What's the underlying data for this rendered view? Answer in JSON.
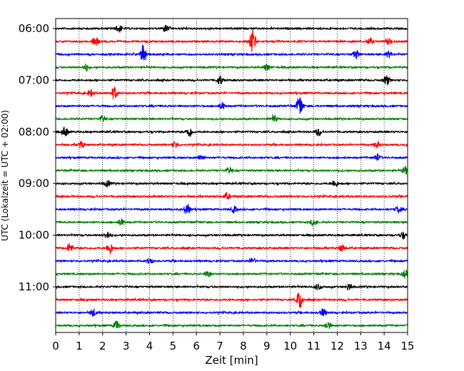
{
  "chart_data": {
    "type": "line",
    "title": "",
    "xlabel": "Zeit  [min]",
    "ylabel": "UTC (Lokalzeit = UTC + 02:00)",
    "xlim": [
      0,
      15
    ],
    "x_ticks": [
      "0",
      "1",
      "2",
      "3",
      "4",
      "5",
      "6",
      "7",
      "8",
      "9",
      "10",
      "11",
      "12",
      "13",
      "14",
      "15"
    ],
    "y_ticks": [
      "06:00",
      "07:00",
      "08:00",
      "09:00",
      "10:00",
      "11:00"
    ],
    "grid": "vertical dotted",
    "trace_interval_minutes": 15,
    "start_time": "06:00",
    "trace_colors": [
      "#000000",
      "#ff0000",
      "#0000ff",
      "#008000"
    ],
    "series": [
      {
        "time": "06:00",
        "events": [
          [
            2.7,
            0.35
          ],
          [
            4.7,
            0.3
          ]
        ]
      },
      {
        "time": "06:15",
        "events": [
          [
            1.7,
            0.5
          ],
          [
            8.4,
            1.2
          ],
          [
            13.4,
            0.3
          ],
          [
            14.2,
            0.3
          ]
        ]
      },
      {
        "time": "06:30",
        "events": [
          [
            3.75,
            1.0
          ],
          [
            12.8,
            0.4
          ],
          [
            14.2,
            0.3
          ]
        ]
      },
      {
        "time": "06:45",
        "events": [
          [
            1.3,
            0.3
          ],
          [
            9.0,
            0.3
          ]
        ]
      },
      {
        "time": "07:00",
        "events": [
          [
            7.0,
            0.4
          ],
          [
            14.1,
            0.45
          ]
        ]
      },
      {
        "time": "07:15",
        "events": [
          [
            2.5,
            0.6
          ],
          [
            1.5,
            0.3
          ]
        ]
      },
      {
        "time": "07:30",
        "events": [
          [
            10.4,
            1.0
          ],
          [
            7.1,
            0.3
          ]
        ]
      },
      {
        "time": "07:45",
        "events": [
          [
            2.0,
            0.3
          ],
          [
            9.3,
            0.35
          ]
        ]
      },
      {
        "time": "08:00",
        "events": [
          [
            0.4,
            0.45
          ],
          [
            5.7,
            0.5
          ],
          [
            11.2,
            0.35
          ]
        ]
      },
      {
        "time": "08:15",
        "events": [
          [
            1.1,
            0.3
          ],
          [
            5.1,
            0.3
          ],
          [
            13.7,
            0.3
          ]
        ]
      },
      {
        "time": "08:30",
        "events": [
          [
            6.2,
            0.3
          ],
          [
            13.7,
            0.35
          ]
        ]
      },
      {
        "time": "08:45",
        "events": [
          [
            7.4,
            0.3
          ],
          [
            14.9,
            0.35
          ]
        ]
      },
      {
        "time": "09:00",
        "events": [
          [
            2.2,
            0.3
          ],
          [
            11.9,
            0.35
          ]
        ]
      },
      {
        "time": "09:15",
        "events": [
          [
            7.3,
            0.3
          ]
        ]
      },
      {
        "time": "09:30",
        "events": [
          [
            5.6,
            0.55
          ],
          [
            7.6,
            0.3
          ],
          [
            14.6,
            0.3
          ]
        ]
      },
      {
        "time": "09:45",
        "events": [
          [
            2.8,
            0.3
          ],
          [
            11.0,
            0.35
          ]
        ]
      },
      {
        "time": "10:00",
        "events": [
          [
            2.2,
            0.35
          ],
          [
            14.8,
            0.3
          ]
        ]
      },
      {
        "time": "10:15",
        "events": [
          [
            0.6,
            0.45
          ],
          [
            2.3,
            0.55
          ],
          [
            12.2,
            0.3
          ]
        ]
      },
      {
        "time": "10:30",
        "events": [
          [
            4.0,
            0.3
          ],
          [
            8.4,
            0.3
          ]
        ]
      },
      {
        "time": "10:45",
        "events": [
          [
            6.5,
            0.3
          ],
          [
            14.9,
            0.35
          ]
        ]
      },
      {
        "time": "11:00",
        "events": [
          [
            11.2,
            0.3
          ],
          [
            12.5,
            0.3
          ]
        ]
      },
      {
        "time": "11:15",
        "events": [
          [
            10.4,
            0.9
          ]
        ]
      },
      {
        "time": "11:30",
        "events": [
          [
            1.6,
            0.35
          ],
          [
            11.4,
            0.35
          ]
        ]
      },
      {
        "time": "11:45",
        "events": [
          [
            2.6,
            0.45
          ],
          [
            11.6,
            0.35
          ]
        ]
      }
    ]
  }
}
